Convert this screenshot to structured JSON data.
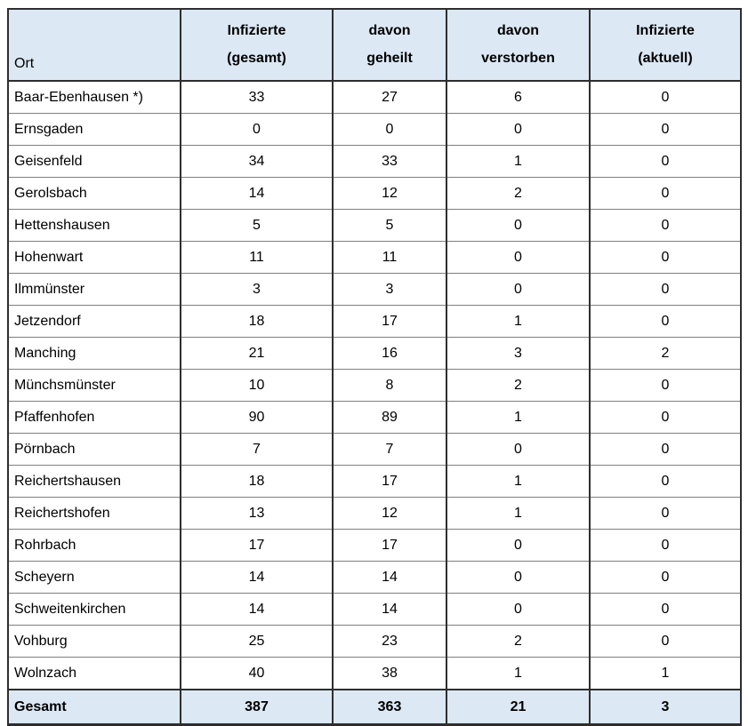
{
  "table": {
    "header": {
      "ort_label": "Ort",
      "cols": [
        {
          "line1": "Infizierte",
          "line2": "(gesamt)"
        },
        {
          "line1": "davon",
          "line2": "geheilt"
        },
        {
          "line1": "davon",
          "line2": "verstorben"
        },
        {
          "line1": "Infizierte",
          "line2": "(aktuell)"
        }
      ]
    },
    "rows": [
      {
        "ort": "Baar-Ebenhausen *)",
        "gesamt": "33",
        "geheilt": "27",
        "verstorben": "6",
        "aktuell": "0"
      },
      {
        "ort": "Ernsgaden",
        "gesamt": "0",
        "geheilt": "0",
        "verstorben": "0",
        "aktuell": "0"
      },
      {
        "ort": "Geisenfeld",
        "gesamt": "34",
        "geheilt": "33",
        "verstorben": "1",
        "aktuell": "0"
      },
      {
        "ort": "Gerolsbach",
        "gesamt": "14",
        "geheilt": "12",
        "verstorben": "2",
        "aktuell": "0"
      },
      {
        "ort": "Hettenshausen",
        "gesamt": "5",
        "geheilt": "5",
        "verstorben": "0",
        "aktuell": "0"
      },
      {
        "ort": "Hohenwart",
        "gesamt": "11",
        "geheilt": "11",
        "verstorben": "0",
        "aktuell": "0"
      },
      {
        "ort": "Ilmmünster",
        "gesamt": "3",
        "geheilt": "3",
        "verstorben": "0",
        "aktuell": "0"
      },
      {
        "ort": "Jetzendorf",
        "gesamt": "18",
        "geheilt": "17",
        "verstorben": "1",
        "aktuell": "0"
      },
      {
        "ort": "Manching",
        "gesamt": "21",
        "geheilt": "16",
        "verstorben": "3",
        "aktuell": "2"
      },
      {
        "ort": "Münchsmünster",
        "gesamt": "10",
        "geheilt": "8",
        "verstorben": "2",
        "aktuell": "0"
      },
      {
        "ort": "Pfaffenhofen",
        "gesamt": "90",
        "geheilt": "89",
        "verstorben": "1",
        "aktuell": "0"
      },
      {
        "ort": "Pörnbach",
        "gesamt": "7",
        "geheilt": "7",
        "verstorben": "0",
        "aktuell": "0"
      },
      {
        "ort": "Reichertshausen",
        "gesamt": "18",
        "geheilt": "17",
        "verstorben": "1",
        "aktuell": "0"
      },
      {
        "ort": "Reichertshofen",
        "gesamt": "13",
        "geheilt": "12",
        "verstorben": "1",
        "aktuell": "0"
      },
      {
        "ort": "Rohrbach",
        "gesamt": "17",
        "geheilt": "17",
        "verstorben": "0",
        "aktuell": "0"
      },
      {
        "ort": "Scheyern",
        "gesamt": "14",
        "geheilt": "14",
        "verstorben": "0",
        "aktuell": "0"
      },
      {
        "ort": "Schweitenkirchen",
        "gesamt": "14",
        "geheilt": "14",
        "verstorben": "0",
        "aktuell": "0"
      },
      {
        "ort": "Vohburg",
        "gesamt": "25",
        "geheilt": "23",
        "verstorben": "2",
        "aktuell": "0"
      },
      {
        "ort": "Wolnzach",
        "gesamt": "40",
        "geheilt": "38",
        "verstorben": "1",
        "aktuell": "1"
      }
    ],
    "footer": {
      "label": "Gesamt",
      "gesamt": "387",
      "geheilt": "363",
      "verstorben": "21",
      "aktuell": "3"
    },
    "colors": {
      "header_bg": "#dce8f4",
      "border_dark": "#2e2e2e",
      "border_light": "#7f7f7f",
      "text": "#000000"
    }
  }
}
